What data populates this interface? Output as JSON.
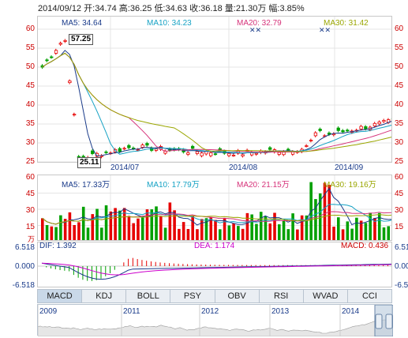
{
  "header": {
    "date": "2014/09/12",
    "open_label": "开:",
    "open": "34.74",
    "high_label": "高:",
    "high": "36.25",
    "low_label": "低:",
    "low": "34.63",
    "close_label": "收:",
    "close": "36.18",
    "volume_label": "量:",
    "volume": "21.30万",
    "amp_label": "幅:",
    "amp": "3.85%"
  },
  "price_panel": {
    "ma5": "MA5: 34.64",
    "ma10": "MA10: 34.23",
    "ma20": "MA20: 32.79",
    "ma30": "MA30: 31.42",
    "y_ticks": [
      "60",
      "55",
      "50",
      "45",
      "40",
      "35",
      "30",
      "25"
    ],
    "x_ticks": [
      "2014/07",
      "2014/08",
      "2014/09"
    ],
    "high_marker": "57.25",
    "low_marker": "25.11"
  },
  "volume_panel": {
    "ma5": "MA5: 17.33万",
    "ma10": "MA10: 17.79万",
    "ma20": "MA20: 21.15万",
    "ma30": "MA30: 19.16万",
    "y_ticks": [
      "60",
      "45",
      "30",
      "15"
    ],
    "unit": "万"
  },
  "macd_panel": {
    "dif": "DIF: 1.392",
    "dea": "DEA: 1.174",
    "macd": "MACD: 0.436",
    "y_ticks": [
      "6.518",
      "0.000",
      "-6.518"
    ]
  },
  "tabs": [
    "MACD",
    "KDJ",
    "BOLL",
    "PSY",
    "OBV",
    "RSI",
    "WVAD",
    "CCI"
  ],
  "active_tab": "MACD",
  "overview": {
    "years": [
      "2009",
      "2011",
      "2012",
      "2013",
      "2014"
    ]
  },
  "colors": {
    "up": "#e60000",
    "down": "#00a000",
    "ma5": "#1a3b8a",
    "ma10": "#16a2c4",
    "ma20": "#d6337a",
    "ma30": "#9aa600"
  }
}
